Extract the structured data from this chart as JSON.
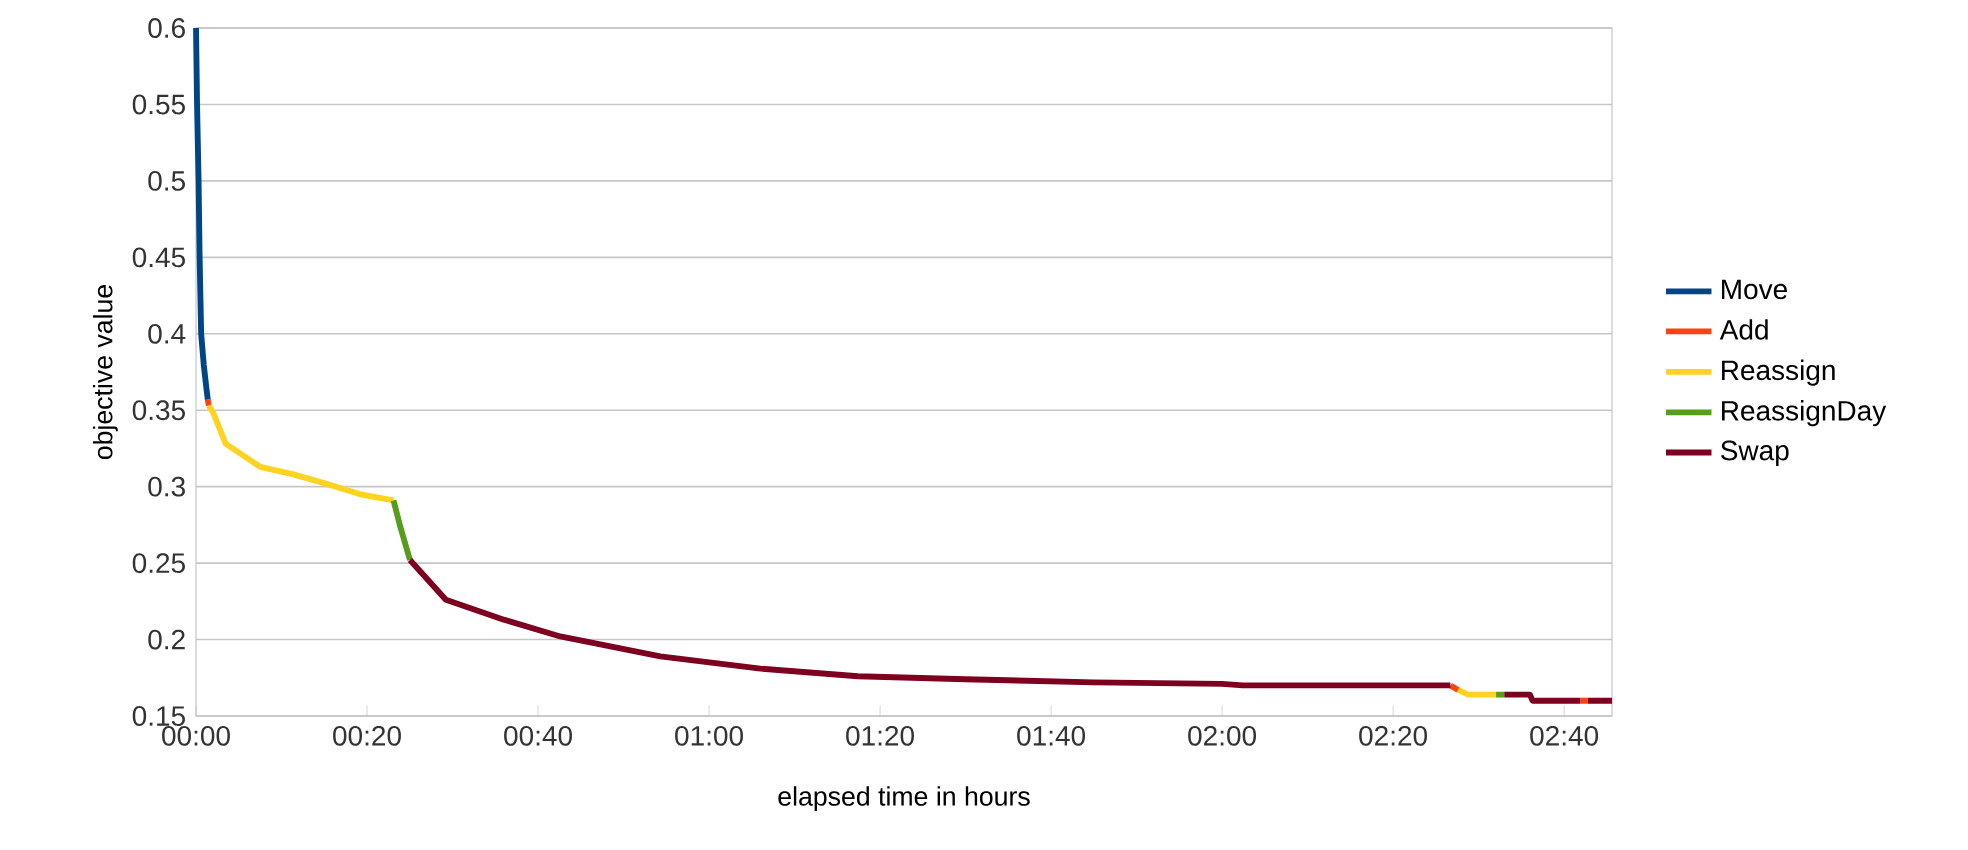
{
  "chart_data": {
    "type": "line",
    "xlabel": "elapsed time in hours",
    "ylabel": "objective value",
    "xlim": [
      0,
      2.76
    ],
    "ylim": [
      0.15,
      0.6
    ],
    "xticks": [
      {
        "value": 0,
        "label": "00:00"
      },
      {
        "value": 0.3333,
        "label": "00:20"
      },
      {
        "value": 0.6667,
        "label": "00:40"
      },
      {
        "value": 1,
        "label": "01:00"
      },
      {
        "value": 1.3333,
        "label": "01:20"
      },
      {
        "value": 1.6667,
        "label": "01:40"
      },
      {
        "value": 2,
        "label": "02:00"
      },
      {
        "value": 2.3333,
        "label": "02:20"
      },
      {
        "value": 2.6667,
        "label": "02:40"
      }
    ],
    "yticks": [
      0.15,
      0.2,
      0.25,
      0.3,
      0.35,
      0.4,
      0.45,
      0.5,
      0.55,
      0.6
    ],
    "grid": "y",
    "legend": "right",
    "series": [
      {
        "name": "Move",
        "color": "#004586",
        "x": [
          0,
          0.002,
          0.005,
          0.007,
          0.01,
          0.015,
          0.02,
          0.023
        ],
        "values": [
          0.6,
          0.55,
          0.5,
          0.45,
          0.4,
          0.38,
          0.365,
          0.357
        ]
      },
      {
        "name": "Add",
        "color": "#ff420e",
        "x": [
          0.023,
          0.025,
          0.1,
          2.445,
          2.46,
          2.6,
          2.698,
          2.713
        ],
        "values": [
          0.357,
          0.353,
          null,
          0.17,
          0.167,
          null,
          0.16,
          0.16
        ]
      },
      {
        "name": "Reassign",
        "color": "#ffd320",
        "x": [
          0.025,
          0.034,
          0.058,
          0.125,
          0.19,
          0.253,
          0.32,
          0.385,
          1.0,
          2.46,
          2.48,
          2.534
        ],
        "values": [
          0.353,
          0.348,
          0.328,
          0.313,
          0.308,
          0.302,
          0.295,
          0.291,
          null,
          0.167,
          0.164,
          0.164
        ]
      },
      {
        "name": "ReassignDay",
        "color": "#579d1c",
        "x": [
          0.385,
          0.398,
          0.417,
          1.0,
          2.534,
          2.55
        ],
        "values": [
          0.291,
          0.274,
          0.252,
          null,
          0.164,
          0.164
        ]
      },
      {
        "name": "Swap",
        "color": "#7e0021",
        "x": [
          0.417,
          0.487,
          0.6,
          0.71,
          0.905,
          1.1,
          1.29,
          1.5,
          1.75,
          2.0,
          2.04,
          2.445,
          2.5,
          2.55,
          2.6,
          2.605,
          2.698,
          2.705,
          2.713,
          2.76
        ],
        "values": [
          0.252,
          0.226,
          0.213,
          0.202,
          0.189,
          0.181,
          0.176,
          0.174,
          0.172,
          0.171,
          0.17,
          0.17,
          null,
          0.164,
          0.164,
          0.16,
          0.16,
          null,
          0.16,
          0.16
        ]
      }
    ]
  }
}
